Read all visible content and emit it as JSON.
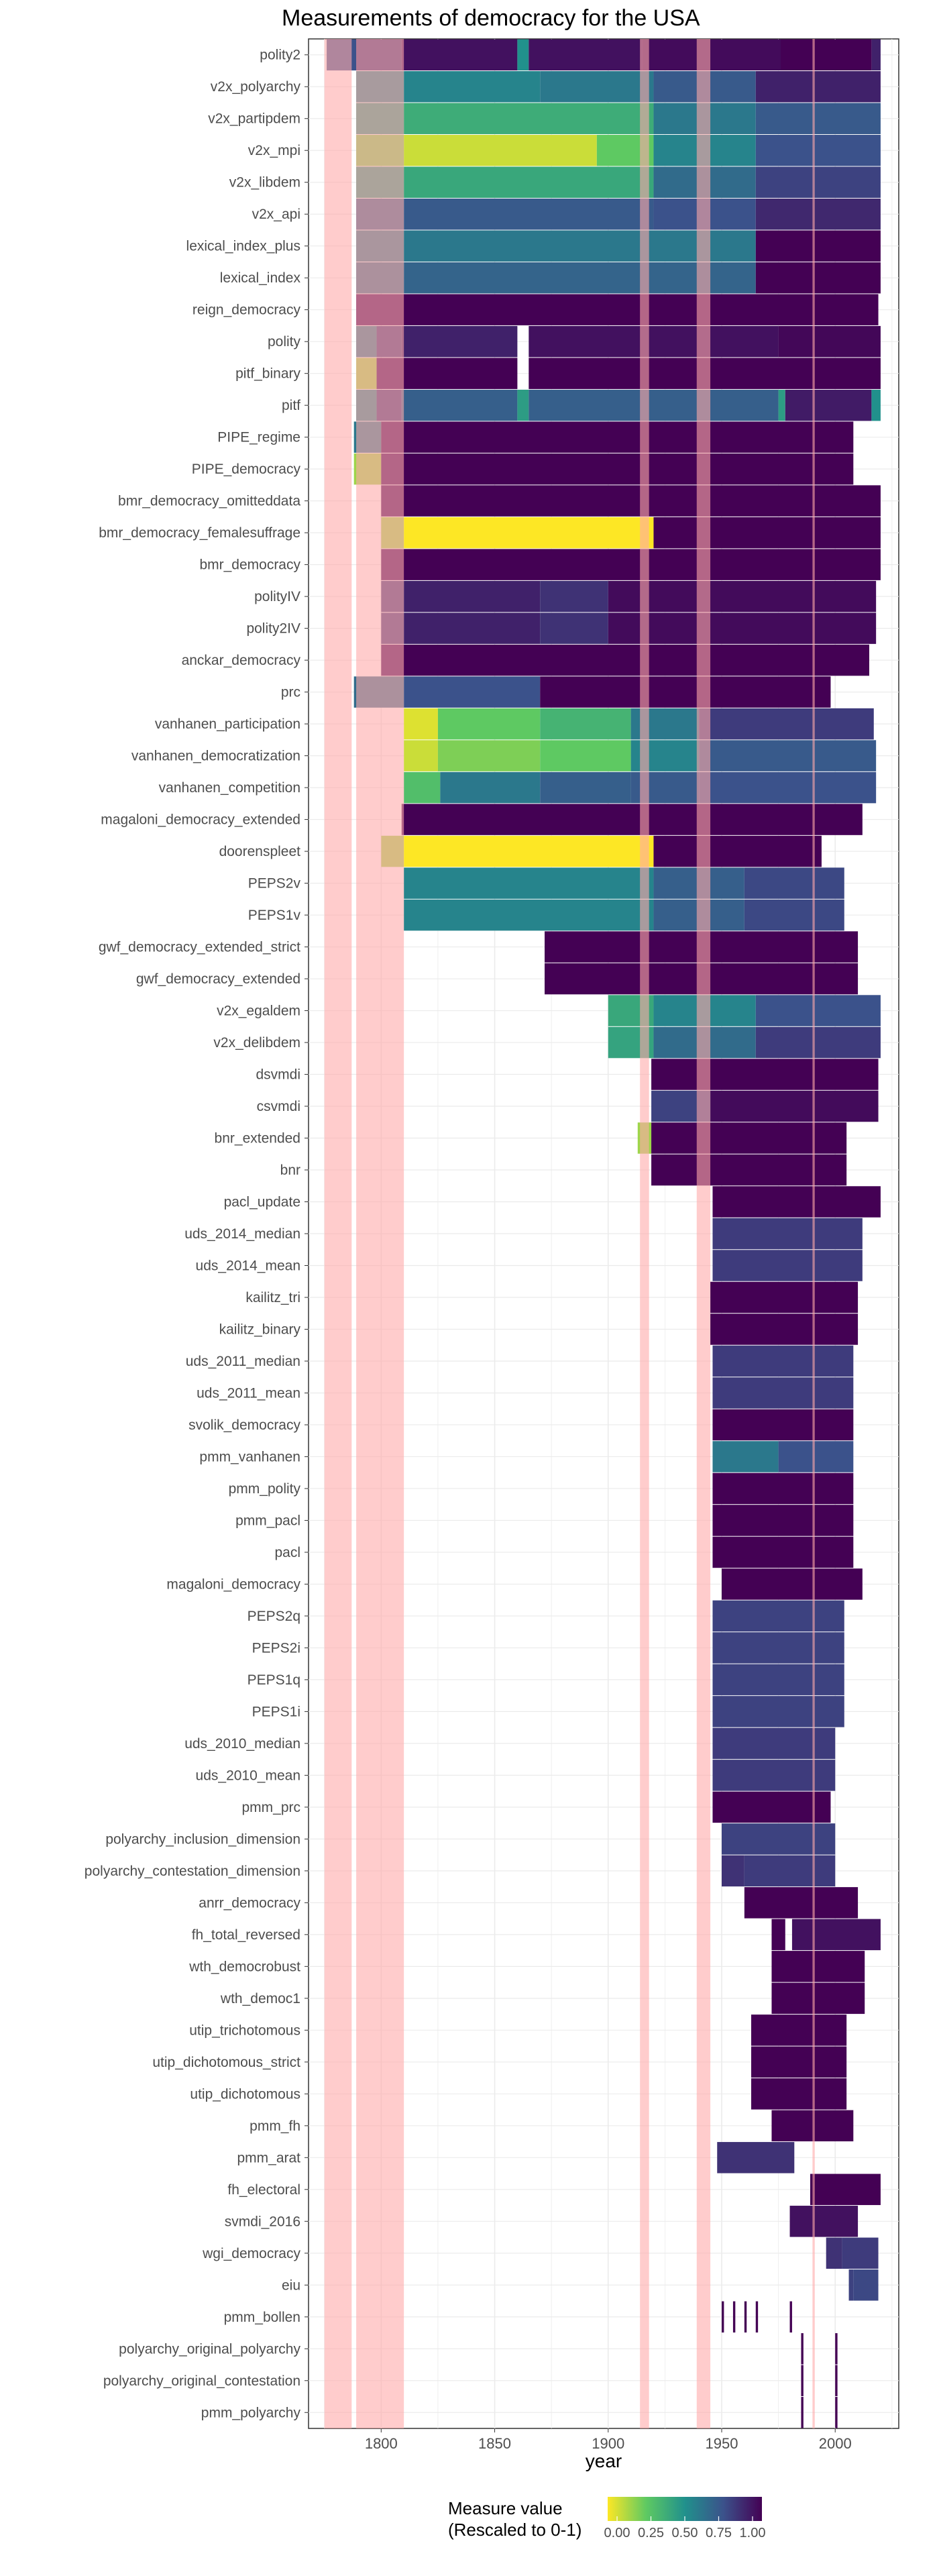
{
  "chart_data": {
    "type": "heatmap",
    "title": "Measurements of democracy for the USA",
    "xlabel": "year",
    "ylabel": "",
    "xlim": [
      1768,
      2028
    ],
    "x_ticks": [
      1800,
      1850,
      1900,
      1950,
      2000
    ],
    "grid": true,
    "legend": {
      "position": "bottom",
      "title_line1": "Measure value",
      "title_line2": "(Rescaled to 0-1)",
      "ticks": [
        "0.00",
        "0.25",
        "0.50",
        "0.75",
        "1.00"
      ],
      "colors": [
        "#fde725",
        "#5ec962",
        "#21918c",
        "#3b528b",
        "#440154"
      ]
    },
    "highlight_periods": [
      [
        1775,
        1787
      ],
      [
        1789,
        1810
      ],
      [
        1914,
        1918
      ],
      [
        1939,
        1945
      ],
      [
        1990,
        1991
      ]
    ],
    "highlight_color": "#ffaaaa",
    "measures": [
      {
        "name": "polity2",
        "segments": [
          [
            1776,
            1789,
            0.75
          ],
          [
            1789,
            1809,
            0.85
          ],
          [
            1809,
            1860,
            0.95
          ],
          [
            1860,
            1865,
            0.5
          ],
          [
            1865,
            1915,
            0.95
          ],
          [
            1915,
            1976,
            0.97
          ],
          [
            1976,
            2016,
            1.0
          ],
          [
            2016,
            2020,
            0.9
          ]
        ]
      },
      {
        "name": "v2x_polyarchy",
        "segments": [
          [
            1789,
            1810,
            0.55
          ],
          [
            1810,
            1870,
            0.55
          ],
          [
            1870,
            1920,
            0.6
          ],
          [
            1920,
            1965,
            0.72
          ],
          [
            1965,
            2020,
            0.9
          ]
        ]
      },
      {
        "name": "v2x_partipdem",
        "segments": [
          [
            1789,
            1810,
            0.45
          ],
          [
            1810,
            1920,
            0.38
          ],
          [
            1920,
            1965,
            0.6
          ],
          [
            1965,
            2020,
            0.72
          ]
        ]
      },
      {
        "name": "v2x_mpi",
        "segments": [
          [
            1789,
            1810,
            0.2
          ],
          [
            1810,
            1895,
            0.08
          ],
          [
            1895,
            1920,
            0.25
          ],
          [
            1920,
            1965,
            0.55
          ],
          [
            1965,
            2020,
            0.75
          ]
        ]
      },
      {
        "name": "v2x_libdem",
        "segments": [
          [
            1789,
            1810,
            0.45
          ],
          [
            1810,
            1920,
            0.4
          ],
          [
            1920,
            1965,
            0.65
          ],
          [
            1965,
            2020,
            0.8
          ]
        ]
      },
      {
        "name": "v2x_api",
        "segments": [
          [
            1789,
            1810,
            0.7
          ],
          [
            1810,
            1920,
            0.72
          ],
          [
            1920,
            1965,
            0.75
          ],
          [
            1965,
            2020,
            0.88
          ]
        ]
      },
      {
        "name": "lexical_index_plus",
        "segments": [
          [
            1789,
            1810,
            0.6
          ],
          [
            1810,
            1965,
            0.6
          ],
          [
            1965,
            2020,
            1.0
          ]
        ]
      },
      {
        "name": "lexical_index",
        "segments": [
          [
            1789,
            1810,
            0.65
          ],
          [
            1810,
            1965,
            0.68
          ],
          [
            1965,
            2020,
            1.0
          ]
        ]
      },
      {
        "name": "reign_democracy",
        "segments": [
          [
            1789,
            2019,
            1.0
          ]
        ]
      },
      {
        "name": "polity",
        "segments": [
          [
            1789,
            1798,
            0.6
          ],
          [
            1798,
            1809,
            0.85
          ],
          [
            1809,
            1860,
            0.9
          ],
          [
            1865,
            1975,
            0.95
          ],
          [
            1975,
            2020,
            0.98
          ]
        ]
      },
      {
        "name": "pitf_binary",
        "segments": [
          [
            1789,
            1798,
            0.15
          ],
          [
            1798,
            1860,
            1.0
          ],
          [
            1865,
            2020,
            1.0
          ]
        ]
      },
      {
        "name": "pitf",
        "segments": [
          [
            1789,
            1798,
            0.55
          ],
          [
            1798,
            1809,
            0.85
          ],
          [
            1809,
            1860,
            0.7
          ],
          [
            1860,
            1865,
            0.45
          ],
          [
            1865,
            1975,
            0.7
          ],
          [
            1975,
            1978,
            0.45
          ],
          [
            1978,
            2016,
            0.92
          ],
          [
            2016,
            2020,
            0.5
          ]
        ]
      },
      {
        "name": "PIPE_regime",
        "segments": [
          [
            1788,
            1800,
            0.6
          ],
          [
            1800,
            2008,
            1.0
          ]
        ]
      },
      {
        "name": "PIPE_democracy",
        "segments": [
          [
            1788,
            1800,
            0.15
          ],
          [
            1800,
            2008,
            1.0
          ]
        ]
      },
      {
        "name": "bmr_democracy_omitteddata",
        "segments": [
          [
            1800,
            2020,
            1.0
          ]
        ]
      },
      {
        "name": "bmr_democracy_femalesuffrage",
        "segments": [
          [
            1800,
            1810,
            0.15
          ],
          [
            1810,
            1920,
            0.0
          ],
          [
            1920,
            2020,
            1.0
          ]
        ]
      },
      {
        "name": "bmr_democracy",
        "segments": [
          [
            1800,
            2020,
            1.0
          ]
        ]
      },
      {
        "name": "polityIV",
        "segments": [
          [
            1800,
            1810,
            0.85
          ],
          [
            1810,
            1870,
            0.9
          ],
          [
            1870,
            1900,
            0.85
          ],
          [
            1900,
            2018,
            0.97
          ]
        ]
      },
      {
        "name": "polity2IV",
        "segments": [
          [
            1800,
            1810,
            0.85
          ],
          [
            1810,
            1870,
            0.9
          ],
          [
            1870,
            1900,
            0.85
          ],
          [
            1900,
            2018,
            0.97
          ]
        ]
      },
      {
        "name": "anckar_democracy",
        "segments": [
          [
            1800,
            2015,
            1.0
          ]
        ]
      },
      {
        "name": "prc",
        "segments": [
          [
            1788,
            1810,
            0.65
          ],
          [
            1810,
            1870,
            0.75
          ],
          [
            1870,
            1998,
            1.0
          ]
        ]
      },
      {
        "name": "vanhanen_participation",
        "segments": [
          [
            1810,
            1825,
            0.05
          ],
          [
            1825,
            1870,
            0.25
          ],
          [
            1870,
            1910,
            0.35
          ],
          [
            1910,
            1940,
            0.6
          ],
          [
            1940,
            2017,
            0.82
          ]
        ]
      },
      {
        "name": "vanhanen_democratization",
        "segments": [
          [
            1810,
            1825,
            0.08
          ],
          [
            1825,
            1870,
            0.2
          ],
          [
            1870,
            1910,
            0.25
          ],
          [
            1910,
            1940,
            0.55
          ],
          [
            1940,
            2018,
            0.72
          ]
        ]
      },
      {
        "name": "vanhanen_competition",
        "segments": [
          [
            1810,
            1826,
            0.3
          ],
          [
            1826,
            1870,
            0.6
          ],
          [
            1870,
            1910,
            0.7
          ],
          [
            1910,
            1940,
            0.72
          ],
          [
            1940,
            2018,
            0.75
          ]
        ]
      },
      {
        "name": "magaloni_democracy_extended",
        "segments": [
          [
            1809,
            2012,
            1.0
          ]
        ]
      },
      {
        "name": "doorenspleet",
        "segments": [
          [
            1800,
            1810,
            0.15
          ],
          [
            1810,
            1920,
            0.0
          ],
          [
            1920,
            1994,
            1.0
          ]
        ]
      },
      {
        "name": "PEPS2v",
        "segments": [
          [
            1810,
            1920,
            0.55
          ],
          [
            1920,
            1960,
            0.7
          ],
          [
            1960,
            2004,
            0.78
          ]
        ]
      },
      {
        "name": "PEPS1v",
        "segments": [
          [
            1810,
            1920,
            0.55
          ],
          [
            1920,
            1960,
            0.7
          ],
          [
            1960,
            2004,
            0.78
          ]
        ]
      },
      {
        "name": "gwf_democracy_extended_strict",
        "segments": [
          [
            1872,
            2010,
            1.0
          ]
        ]
      },
      {
        "name": "gwf_democracy_extended",
        "segments": [
          [
            1872,
            2010,
            1.0
          ]
        ]
      },
      {
        "name": "v2x_egaldem",
        "segments": [
          [
            1900,
            1920,
            0.4
          ],
          [
            1920,
            1965,
            0.55
          ],
          [
            1965,
            2020,
            0.75
          ]
        ]
      },
      {
        "name": "v2x_delibdem",
        "segments": [
          [
            1900,
            1920,
            0.42
          ],
          [
            1920,
            1965,
            0.65
          ],
          [
            1965,
            2020,
            0.82
          ]
        ]
      },
      {
        "name": "dsvmdi",
        "segments": [
          [
            1919,
            2019,
            1.0
          ]
        ]
      },
      {
        "name": "csvmdi",
        "segments": [
          [
            1919,
            1945,
            0.8
          ],
          [
            1945,
            2019,
            0.97
          ]
        ]
      },
      {
        "name": "bnr_extended",
        "segments": [
          [
            1913,
            1919,
            0.15
          ],
          [
            1919,
            2005,
            1.0
          ]
        ]
      },
      {
        "name": "bnr",
        "segments": [
          [
            1919,
            2005,
            1.0
          ]
        ]
      },
      {
        "name": "pacl_update",
        "segments": [
          [
            1946,
            2020,
            1.0
          ]
        ]
      },
      {
        "name": "uds_2014_median",
        "segments": [
          [
            1946,
            2012,
            0.82
          ]
        ]
      },
      {
        "name": "uds_2014_mean",
        "segments": [
          [
            1946,
            2012,
            0.82
          ]
        ]
      },
      {
        "name": "kailitz_tri",
        "segments": [
          [
            1945,
            2010,
            1.0
          ]
        ]
      },
      {
        "name": "kailitz_binary",
        "segments": [
          [
            1945,
            2010,
            1.0
          ]
        ]
      },
      {
        "name": "uds_2011_median",
        "segments": [
          [
            1946,
            2008,
            0.82
          ]
        ]
      },
      {
        "name": "uds_2011_mean",
        "segments": [
          [
            1946,
            2008,
            0.82
          ]
        ]
      },
      {
        "name": "svolik_democracy",
        "segments": [
          [
            1946,
            2008,
            1.0
          ]
        ]
      },
      {
        "name": "pmm_vanhanen",
        "segments": [
          [
            1946,
            1975,
            0.6
          ],
          [
            1975,
            2008,
            0.75
          ]
        ]
      },
      {
        "name": "pmm_polity",
        "segments": [
          [
            1946,
            2008,
            1.0
          ]
        ]
      },
      {
        "name": "pmm_pacl",
        "segments": [
          [
            1946,
            2008,
            1.0
          ]
        ]
      },
      {
        "name": "pacl",
        "segments": [
          [
            1946,
            2008,
            1.0
          ]
        ]
      },
      {
        "name": "magaloni_democracy",
        "segments": [
          [
            1950,
            2012,
            1.0
          ]
        ]
      },
      {
        "name": "PEPS2q",
        "segments": [
          [
            1946,
            2004,
            0.8
          ]
        ]
      },
      {
        "name": "PEPS2i",
        "segments": [
          [
            1946,
            2004,
            0.8
          ]
        ]
      },
      {
        "name": "PEPS1q",
        "segments": [
          [
            1946,
            2004,
            0.8
          ]
        ]
      },
      {
        "name": "PEPS1i",
        "segments": [
          [
            1946,
            2004,
            0.8
          ]
        ]
      },
      {
        "name": "uds_2010_median",
        "segments": [
          [
            1946,
            2000,
            0.82
          ]
        ]
      },
      {
        "name": "uds_2010_mean",
        "segments": [
          [
            1946,
            2000,
            0.82
          ]
        ]
      },
      {
        "name": "pmm_prc",
        "segments": [
          [
            1946,
            1998,
            1.0
          ]
        ]
      },
      {
        "name": "polyarchy_inclusion_dimension",
        "segments": [
          [
            1950,
            2000,
            0.8
          ]
        ]
      },
      {
        "name": "polyarchy_contestation_dimension",
        "segments": [
          [
            1950,
            1960,
            0.85
          ],
          [
            1960,
            2000,
            0.82
          ]
        ]
      },
      {
        "name": "anrr_democracy",
        "segments": [
          [
            1960,
            2010,
            1.0
          ]
        ]
      },
      {
        "name": "fh_total_reversed",
        "segments": [
          [
            1972,
            1978,
            1.0
          ],
          [
            1981,
            2020,
            0.95
          ]
        ]
      },
      {
        "name": "wth_democrobust",
        "segments": [
          [
            1972,
            2013,
            1.0
          ]
        ]
      },
      {
        "name": "wth_democ1",
        "segments": [
          [
            1972,
            2013,
            1.0
          ]
        ]
      },
      {
        "name": "utip_trichotomous",
        "segments": [
          [
            1963,
            2005,
            1.0
          ]
        ]
      },
      {
        "name": "utip_dichotomous_strict",
        "segments": [
          [
            1963,
            2005,
            1.0
          ]
        ]
      },
      {
        "name": "utip_dichotomous",
        "segments": [
          [
            1963,
            2005,
            1.0
          ]
        ]
      },
      {
        "name": "pmm_fh",
        "segments": [
          [
            1972,
            2008,
            1.0
          ]
        ]
      },
      {
        "name": "pmm_arat",
        "segments": [
          [
            1948,
            1982,
            0.85
          ]
        ]
      },
      {
        "name": "fh_electoral",
        "segments": [
          [
            1989,
            2020,
            1.0
          ]
        ]
      },
      {
        "name": "svmdi_2016",
        "segments": [
          [
            1980,
            2010,
            0.95
          ]
        ]
      },
      {
        "name": "wgi_democracy",
        "segments": [
          [
            1996,
            2003,
            0.85
          ],
          [
            2003,
            2019,
            0.82
          ]
        ]
      },
      {
        "name": "eiu",
        "segments": [
          [
            2006,
            2008,
            0.8
          ],
          [
            2008,
            2019,
            0.78
          ]
        ]
      },
      {
        "name": "pmm_bollen",
        "segments": [
          [
            1950,
            1951,
            1.0
          ],
          [
            1955,
            1956,
            1.0
          ],
          [
            1960,
            1961,
            1.0
          ],
          [
            1965,
            1966,
            1.0
          ],
          [
            1980,
            1981,
            1.0
          ]
        ]
      },
      {
        "name": "polyarchy_original_polyarchy",
        "segments": [
          [
            1985,
            1986,
            1.0
          ],
          [
            2000,
            2001,
            1.0
          ]
        ]
      },
      {
        "name": "polyarchy_original_contestation",
        "segments": [
          [
            1985,
            1986,
            1.0
          ],
          [
            2000,
            2001,
            1.0
          ]
        ]
      },
      {
        "name": "pmm_polyarchy",
        "segments": [
          [
            1985,
            1986,
            1.0
          ],
          [
            2000,
            2001,
            1.0
          ]
        ]
      }
    ]
  }
}
